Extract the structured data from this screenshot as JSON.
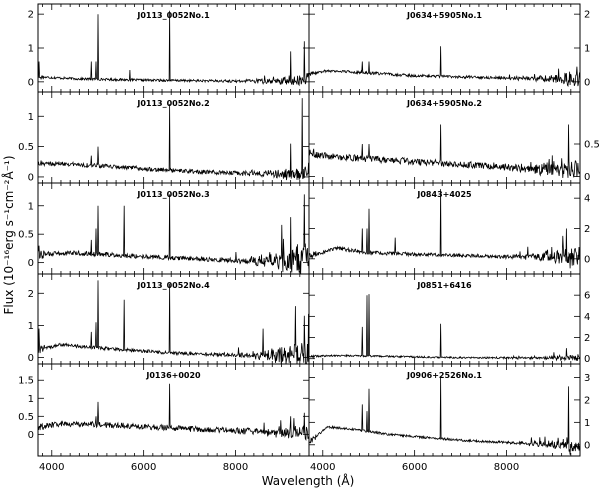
{
  "figure": {
    "xlabel": "Wavelength (Å)",
    "ylabel": "Flux (10⁻¹⁶erg s⁻¹cm⁻²Å⁻¹)"
  },
  "chart_data": [
    {
      "type": "line",
      "title": "J0113_0052No.1",
      "xlim": [
        3700,
        9600
      ],
      "ylim": [
        -0.3,
        2.3
      ],
      "yticks": [
        0,
        1,
        2
      ],
      "ytick_side": "left",
      "continuum": [
        [
          3700,
          0.15
        ],
        [
          4500,
          0.09
        ],
        [
          6000,
          0.05
        ],
        [
          8000,
          0.02
        ],
        [
          9000,
          0.03
        ],
        [
          9600,
          0.05
        ]
      ],
      "noise": 0.035,
      "lines": [
        [
          3727,
          0.6
        ],
        [
          4861,
          0.6
        ],
        [
          4959,
          0.6
        ],
        [
          5007,
          2.0
        ],
        [
          5700,
          0.35
        ],
        [
          6563,
          2.1
        ],
        [
          9200,
          0.9
        ],
        [
          9500,
          1.2
        ]
      ],
      "red_noise": 0.2
    },
    {
      "type": "line",
      "title": "J0634+5905No.1",
      "xlim": [
        3700,
        9600
      ],
      "ylim": [
        -0.3,
        2.3
      ],
      "yticks": [
        0,
        1,
        2
      ],
      "ytick_side": "right",
      "continuum": [
        [
          3700,
          0.25
        ],
        [
          4100,
          0.33
        ],
        [
          4800,
          0.28
        ],
        [
          6000,
          0.18
        ],
        [
          8000,
          0.11
        ],
        [
          9600,
          0.08
        ]
      ],
      "noise": 0.04,
      "lines": [
        [
          4861,
          0.6
        ],
        [
          5007,
          0.6
        ],
        [
          6563,
          1.05
        ],
        [
          9069,
          0.2
        ],
        [
          9532,
          0.45
        ]
      ],
      "red_noise": 0.25
    },
    {
      "type": "line",
      "title": "J0113_0052No.2",
      "xlim": [
        3700,
        9600
      ],
      "ylim": [
        -0.1,
        1.4
      ],
      "yticks": [
        0,
        0.5,
        1
      ],
      "ytick_side": "left",
      "continuum": [
        [
          3700,
          0.22
        ],
        [
          4200,
          0.22
        ],
        [
          5500,
          0.16
        ],
        [
          7000,
          0.09
        ],
        [
          8500,
          0.05
        ],
        [
          9600,
          0.05
        ]
      ],
      "noise": 0.035,
      "lines": [
        [
          3727,
          0.2
        ],
        [
          4861,
          0.35
        ],
        [
          5007,
          0.5
        ],
        [
          6563,
          1.2
        ],
        [
          9200,
          0.55
        ],
        [
          9450,
          1.3
        ]
      ],
      "red_noise": 0.12
    },
    {
      "type": "line",
      "title": "J0634+5905No.2",
      "xlim": [
        3700,
        9600
      ],
      "ylim": [
        -0.1,
        1.3
      ],
      "yticks": [
        0,
        0.5
      ],
      "ytick_side": "right",
      "continuum": [
        [
          3700,
          0.35
        ],
        [
          4300,
          0.3
        ],
        [
          5500,
          0.25
        ],
        [
          7000,
          0.19
        ],
        [
          8500,
          0.12
        ],
        [
          9600,
          0.1
        ]
      ],
      "noise": 0.05,
      "lines": [
        [
          4861,
          0.5
        ],
        [
          5007,
          0.5
        ],
        [
          6563,
          0.8
        ],
        [
          9350,
          0.8
        ]
      ],
      "red_noise": 0.15
    },
    {
      "type": "line",
      "title": "J0113_0052No.3",
      "xlim": [
        3700,
        9600
      ],
      "ylim": [
        -0.2,
        1.4
      ],
      "yticks": [
        0,
        0.5,
        1
      ],
      "ytick_side": "left",
      "continuum": [
        [
          3700,
          0.15
        ],
        [
          4500,
          0.17
        ],
        [
          5500,
          0.13
        ],
        [
          7000,
          0.07
        ],
        [
          8500,
          0.02
        ],
        [
          9600,
          0.03
        ]
      ],
      "noise": 0.04,
      "lines": [
        [
          3727,
          0.3
        ],
        [
          4861,
          0.4
        ],
        [
          4959,
          0.6
        ],
        [
          5007,
          1.0
        ],
        [
          5577,
          1.0
        ],
        [
          6563,
          1.2
        ],
        [
          9200,
          0.8
        ],
        [
          9500,
          1.2
        ]
      ],
      "red_noise": 0.35
    },
    {
      "type": "line",
      "title": "J0843+4025",
      "xlim": [
        3700,
        9600
      ],
      "ylim": [
        -1,
        5
      ],
      "yticks": [
        0,
        2,
        4
      ],
      "ytick_side": "right",
      "continuum": [
        [
          3700,
          0.15
        ],
        [
          4300,
          0.7
        ],
        [
          5000,
          0.4
        ],
        [
          6000,
          0.3
        ],
        [
          8000,
          0.15
        ],
        [
          9600,
          0.2
        ]
      ],
      "noise": 0.12,
      "lines": [
        [
          4861,
          2.0
        ],
        [
          4959,
          2.0
        ],
        [
          5007,
          3.3
        ],
        [
          5577,
          1.4
        ],
        [
          6563,
          4.6
        ],
        [
          9300,
          2.0
        ]
      ],
      "red_noise": 0.7
    },
    {
      "type": "line",
      "title": "J0113_0052No.4",
      "xlim": [
        3700,
        9600
      ],
      "ylim": [
        -0.2,
        2.6
      ],
      "yticks": [
        0,
        1,
        2
      ],
      "ytick_side": "left",
      "continuum": [
        [
          3700,
          0.25
        ],
        [
          4200,
          0.4
        ],
        [
          5000,
          0.3
        ],
        [
          6500,
          0.15
        ],
        [
          8000,
          0.07
        ],
        [
          9600,
          0.05
        ]
      ],
      "noise": 0.05,
      "lines": [
        [
          3727,
          0.9
        ],
        [
          4861,
          0.8
        ],
        [
          4959,
          1.1
        ],
        [
          5007,
          2.4
        ],
        [
          5577,
          1.8
        ],
        [
          6563,
          2.3
        ],
        [
          8600,
          0.9
        ],
        [
          9300,
          1.6
        ],
        [
          9500,
          1.3
        ]
      ],
      "red_noise": 0.5
    },
    {
      "type": "line",
      "title": "J0851+6416",
      "xlim": [
        3700,
        9600
      ],
      "ylim": [
        -0.5,
        8
      ],
      "yticks": [
        0,
        2,
        4,
        6
      ],
      "ytick_side": "right",
      "continuum": [
        [
          3700,
          0.2
        ],
        [
          4300,
          0.3
        ],
        [
          5500,
          0.2
        ],
        [
          7000,
          0.1
        ],
        [
          9600,
          0.05
        ]
      ],
      "noise": 0.08,
      "lines": [
        [
          4861,
          3.0
        ],
        [
          4959,
          6.0
        ],
        [
          5007,
          6.1
        ],
        [
          6563,
          3.3
        ],
        [
          9300,
          1.0
        ]
      ],
      "red_noise": 0.3
    },
    {
      "type": "line",
      "title": "J0136+0020",
      "xlim": [
        3700,
        9600
      ],
      "ylim": [
        -0.6,
        1.95
      ],
      "yticks": [
        0,
        0.5,
        1,
        1.5
      ],
      "ytick_side": "left",
      "continuum": [
        [
          3700,
          0.2
        ],
        [
          4200,
          0.3
        ],
        [
          5500,
          0.25
        ],
        [
          7000,
          0.15
        ],
        [
          8500,
          0.08
        ],
        [
          9600,
          0.05
        ]
      ],
      "noise": 0.08,
      "lines": [
        [
          4959,
          0.5
        ],
        [
          5007,
          0.9
        ],
        [
          6563,
          1.4
        ],
        [
          9200,
          0.5
        ],
        [
          9500,
          0.6
        ]
      ],
      "red_noise": 0.2
    },
    {
      "type": "line",
      "title": "J0906+2526No.1",
      "xlim": [
        3700,
        9600
      ],
      "ylim": [
        -0.5,
        3.6
      ],
      "yticks": [
        0,
        1,
        2,
        3
      ],
      "ytick_side": "right",
      "continuum": [
        [
          3700,
          0.1
        ],
        [
          4100,
          0.8
        ],
        [
          4600,
          0.7
        ],
        [
          5500,
          0.45
        ],
        [
          7000,
          0.2
        ],
        [
          8500,
          0.05
        ],
        [
          9600,
          -0.05
        ]
      ],
      "noise": 0.05,
      "lines": [
        [
          4861,
          1.8
        ],
        [
          4959,
          1.5
        ],
        [
          5007,
          2.5
        ],
        [
          6563,
          3.0
        ],
        [
          9350,
          2.6
        ]
      ],
      "red_noise": 0.3
    }
  ],
  "xticks": [
    4000,
    6000,
    8000
  ]
}
